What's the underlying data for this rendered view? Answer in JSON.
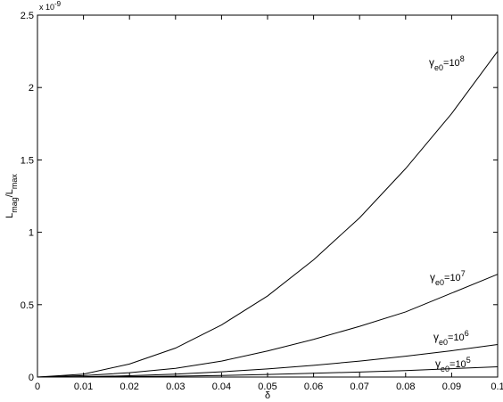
{
  "chart_data": {
    "type": "line",
    "x_label": "δ",
    "y_label": {
      "base": "L",
      "sub": "mag",
      "mid": "/L",
      "sub2": "max"
    },
    "y_exponent": {
      "base": "x 10",
      "sup": "-9"
    },
    "x": [
      0,
      0.01,
      0.02,
      0.03,
      0.04,
      0.05,
      0.06,
      0.07,
      0.08,
      0.09,
      0.1
    ],
    "series": [
      {
        "label": {
          "base": "γ",
          "sub": "e0",
          "mid": "=10",
          "sup": "8"
        },
        "color": "#000000",
        "values": [
          0,
          0.02,
          0.09,
          0.2,
          0.36,
          0.56,
          0.81,
          1.1,
          1.44,
          1.82,
          2.25
        ]
      },
      {
        "label": {
          "base": "γ",
          "sub": "e0",
          "mid": "=10",
          "sup": "7"
        },
        "color": "#000000",
        "values": [
          0,
          0.01,
          0.03,
          0.06,
          0.11,
          0.18,
          0.26,
          0.35,
          0.45,
          0.58,
          0.71
        ]
      },
      {
        "label": {
          "base": "γ",
          "sub": "e0",
          "mid": "=10",
          "sup": "6"
        },
        "color": "#000000",
        "values": [
          0,
          0.002,
          0.009,
          0.02,
          0.036,
          0.056,
          0.081,
          0.11,
          0.144,
          0.182,
          0.225
        ]
      },
      {
        "label": {
          "base": "γ",
          "sub": "e0",
          "mid": "=10",
          "sup": "5"
        },
        "color": "#000000",
        "values": [
          0,
          0.001,
          0.003,
          0.006,
          0.011,
          0.018,
          0.026,
          0.035,
          0.045,
          0.058,
          0.071
        ]
      }
    ],
    "xlim": [
      0,
      0.1
    ],
    "xticks": [
      0,
      0.01,
      0.02,
      0.03,
      0.04,
      0.05,
      0.06,
      0.07,
      0.08,
      0.09,
      0.1
    ],
    "ylim": [
      0,
      2.5
    ],
    "yticks": [
      0,
      0.5,
      1,
      1.5,
      2,
      2.5
    ],
    "grid": false
  }
}
